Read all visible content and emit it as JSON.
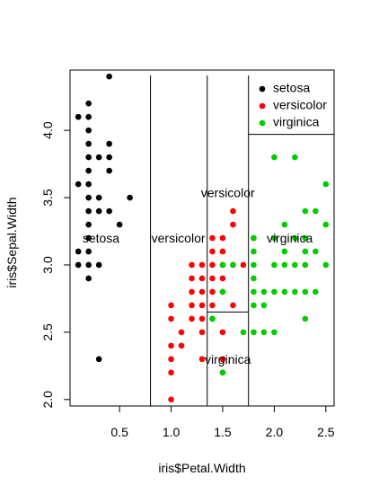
{
  "chart_data": {
    "type": "scatter",
    "xlabel": "iris$Petal.Width",
    "ylabel": "iris$Sepal.Width",
    "xlim": [
      0.02,
      2.58
    ],
    "ylim": [
      1.952,
      4.448
    ],
    "x_ticks": [
      0.5,
      1.0,
      1.5,
      2.0,
      2.5
    ],
    "y_ticks": [
      2.0,
      2.5,
      3.0,
      3.5,
      4.0
    ],
    "grid": false,
    "legend": {
      "position": "top-right"
    },
    "series": [
      {
        "name": "setosa",
        "color": "#000000",
        "points": [
          [
            0.1,
            3.1
          ],
          [
            0.1,
            3.0
          ],
          [
            0.1,
            3.6
          ],
          [
            0.1,
            4.1
          ],
          [
            0.2,
            2.9
          ],
          [
            0.2,
            3.0
          ],
          [
            0.2,
            3.1
          ],
          [
            0.2,
            3.2
          ],
          [
            0.2,
            3.3
          ],
          [
            0.2,
            3.4
          ],
          [
            0.2,
            3.5
          ],
          [
            0.2,
            3.6
          ],
          [
            0.2,
            3.7
          ],
          [
            0.2,
            3.8
          ],
          [
            0.2,
            3.9
          ],
          [
            0.2,
            4.0
          ],
          [
            0.2,
            4.1
          ],
          [
            0.2,
            4.2
          ],
          [
            0.3,
            2.3
          ],
          [
            0.3,
            3.0
          ],
          [
            0.3,
            3.4
          ],
          [
            0.3,
            3.5
          ],
          [
            0.3,
            3.8
          ],
          [
            0.4,
            3.4
          ],
          [
            0.4,
            3.7
          ],
          [
            0.4,
            3.8
          ],
          [
            0.4,
            3.9
          ],
          [
            0.4,
            4.4
          ],
          [
            0.5,
            3.3
          ],
          [
            0.6,
            3.5
          ]
        ]
      },
      {
        "name": "versicolor",
        "color": "#ff0000",
        "points": [
          [
            1.0,
            2.0
          ],
          [
            1.0,
            2.2
          ],
          [
            1.0,
            2.3
          ],
          [
            1.0,
            2.4
          ],
          [
            1.0,
            2.6
          ],
          [
            1.0,
            2.7
          ],
          [
            1.1,
            2.4
          ],
          [
            1.1,
            2.5
          ],
          [
            1.2,
            2.6
          ],
          [
            1.2,
            2.7
          ],
          [
            1.2,
            2.8
          ],
          [
            1.2,
            2.9
          ],
          [
            1.2,
            3.0
          ],
          [
            1.3,
            2.3
          ],
          [
            1.3,
            2.5
          ],
          [
            1.3,
            2.6
          ],
          [
            1.3,
            2.7
          ],
          [
            1.3,
            2.8
          ],
          [
            1.3,
            2.9
          ],
          [
            1.3,
            3.0
          ],
          [
            1.4,
            2.6
          ],
          [
            1.4,
            2.7
          ],
          [
            1.4,
            2.8
          ],
          [
            1.4,
            2.9
          ],
          [
            1.4,
            3.0
          ],
          [
            1.4,
            3.1
          ],
          [
            1.4,
            3.2
          ],
          [
            1.5,
            2.2
          ],
          [
            1.5,
            2.3
          ],
          [
            1.5,
            2.5
          ],
          [
            1.5,
            2.8
          ],
          [
            1.5,
            2.9
          ],
          [
            1.5,
            3.0
          ],
          [
            1.5,
            3.1
          ],
          [
            1.5,
            3.2
          ],
          [
            1.6,
            2.7
          ],
          [
            1.6,
            3.0
          ],
          [
            1.6,
            3.3
          ],
          [
            1.6,
            3.4
          ],
          [
            1.7,
            3.0
          ],
          [
            1.8,
            3.2
          ]
        ]
      },
      {
        "name": "virginica",
        "color": "#00cd00",
        "points": [
          [
            1.4,
            2.6
          ],
          [
            1.5,
            2.2
          ],
          [
            1.5,
            2.8
          ],
          [
            1.5,
            3.0
          ],
          [
            1.6,
            3.0
          ],
          [
            1.7,
            2.5
          ],
          [
            1.8,
            2.5
          ],
          [
            1.8,
            2.7
          ],
          [
            1.8,
            2.8
          ],
          [
            1.8,
            2.9
          ],
          [
            1.8,
            3.0
          ],
          [
            1.8,
            3.1
          ],
          [
            1.8,
            3.2
          ],
          [
            1.9,
            2.5
          ],
          [
            1.9,
            2.7
          ],
          [
            1.9,
            2.8
          ],
          [
            2.0,
            2.5
          ],
          [
            2.0,
            2.8
          ],
          [
            2.0,
            3.0
          ],
          [
            2.0,
            3.2
          ],
          [
            2.0,
            3.8
          ],
          [
            2.1,
            2.8
          ],
          [
            2.1,
            3.0
          ],
          [
            2.1,
            3.1
          ],
          [
            2.1,
            3.3
          ],
          [
            2.2,
            2.8
          ],
          [
            2.2,
            3.0
          ],
          [
            2.2,
            3.2
          ],
          [
            2.2,
            3.8
          ],
          [
            2.3,
            2.6
          ],
          [
            2.3,
            2.8
          ],
          [
            2.3,
            3.0
          ],
          [
            2.3,
            3.1
          ],
          [
            2.3,
            3.2
          ],
          [
            2.3,
            3.4
          ],
          [
            2.4,
            2.8
          ],
          [
            2.4,
            3.1
          ],
          [
            2.4,
            3.4
          ],
          [
            2.5,
            3.0
          ],
          [
            2.5,
            3.3
          ],
          [
            2.5,
            3.6
          ]
        ]
      }
    ],
    "split_lines": [
      {
        "axis": "x",
        "value": 0.8
      },
      {
        "axis": "x",
        "value": 1.35
      },
      {
        "axis": "x",
        "value": 1.75
      },
      {
        "axis": "y",
        "value": 2.65,
        "x_from": 1.35,
        "x_to": 1.75
      },
      {
        "axis": "y",
        "value": 3.97,
        "x_from": 1.75,
        "x_to": 2.58
      }
    ],
    "annotations": [
      {
        "text": "setosa",
        "x": 0.32,
        "y": 3.19
      },
      {
        "text": "versicolor",
        "x": 1.07,
        "y": 3.19
      },
      {
        "text": "versicolor",
        "x": 1.55,
        "y": 3.53
      },
      {
        "text": "virginica",
        "x": 1.55,
        "y": 2.29
      },
      {
        "text": "virginica",
        "x": 2.15,
        "y": 3.19
      }
    ]
  }
}
